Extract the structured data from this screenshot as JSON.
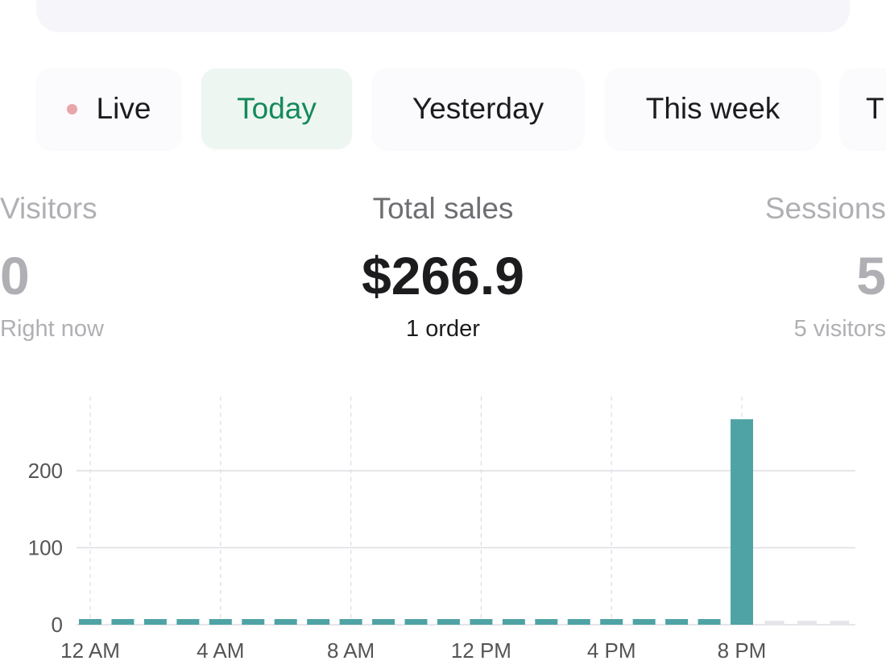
{
  "search": {
    "placeholder": ""
  },
  "tabs": [
    {
      "label": "Live",
      "has_dot": true,
      "dot_color": "#e8a6aa"
    },
    {
      "label": "Today",
      "active": true
    },
    {
      "label": "Yesterday"
    },
    {
      "label": "This week"
    },
    {
      "label": "T"
    }
  ],
  "stats": [
    {
      "label": "Visitors",
      "value": "0",
      "sub": "Right now"
    },
    {
      "label": "Total sales",
      "value": "$266.9",
      "sub": "1 order"
    },
    {
      "label": "Sessions",
      "value": "5",
      "sub": "5 visitors"
    }
  ],
  "colors": {
    "accent": "#138a5c",
    "bar": "#4fa3a5",
    "future_bar": "#e6e6ea"
  },
  "chart_data": {
    "type": "bar",
    "x_tick_labels": [
      "12 AM",
      "4 AM",
      "8 AM",
      "12 PM",
      "4 PM",
      "8 PM"
    ],
    "y_tick_labels": [
      "0",
      "100",
      "200"
    ],
    "ylim": [
      0,
      300
    ],
    "grid": true,
    "hours": [
      0,
      1,
      2,
      3,
      4,
      5,
      6,
      7,
      8,
      9,
      10,
      11,
      12,
      13,
      14,
      15,
      16,
      17,
      18,
      19,
      20,
      21,
      22,
      23
    ],
    "values": [
      0,
      0,
      0,
      0,
      0,
      0,
      0,
      0,
      0,
      0,
      0,
      0,
      0,
      0,
      0,
      0,
      0,
      0,
      0,
      0,
      266.9,
      null,
      null,
      null
    ]
  }
}
